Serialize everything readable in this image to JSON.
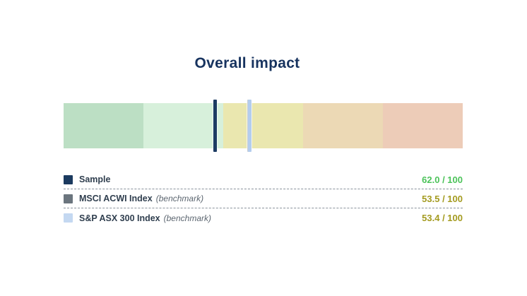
{
  "title": "Overall impact",
  "colors": {
    "title": "#17335f",
    "separator": "#8a929c",
    "sample_value": "#4cc35a",
    "benchmark_value": "#a49b20"
  },
  "chart_data": {
    "type": "bullet-scale",
    "title": "Overall impact",
    "scale": {
      "min": 0,
      "max": 100,
      "orientation": "horizontal",
      "direction": "left=100 (best, green) to right=0 (worst, red)"
    },
    "bands": [
      {
        "range": [
          100,
          80
        ],
        "color": "#bcdfc4"
      },
      {
        "range": [
          80,
          60
        ],
        "color": "#d7f0db"
      },
      {
        "range": [
          60,
          40
        ],
        "color": "#eae7af"
      },
      {
        "range": [
          40,
          20
        ],
        "color": "#ecd9b5"
      },
      {
        "range": [
          20,
          0
        ],
        "color": "#edccb8"
      }
    ],
    "markers": [
      {
        "name": "Sample",
        "value": 62.0,
        "color": "#1d3c63",
        "layer": 3
      },
      {
        "name": "MSCI ACWI Index",
        "value": 53.5,
        "color": "#6b757e",
        "layer": 1
      },
      {
        "name": "S&P ASX 300 Index",
        "value": 53.4,
        "color": "#b4cdee",
        "layer": 2
      }
    ]
  },
  "legend": {
    "rows": [
      {
        "label": "Sample",
        "suffix": "",
        "value_display": "62.0 / 100",
        "score": 62.0,
        "denominator": 100,
        "swatch_color": "#1b3a5f",
        "value_color": "#4cc35a"
      },
      {
        "label": "MSCI ACWI Index",
        "suffix": "(benchmark)",
        "value_display": "53.5 / 100",
        "score": 53.5,
        "denominator": 100,
        "swatch_color": "#6b757e",
        "value_color": "#a49b20"
      },
      {
        "label": "S&P ASX 300 Index",
        "suffix": "(benchmark)",
        "value_display": "53.4 / 100",
        "score": 53.4,
        "denominator": 100,
        "swatch_color": "#c4d8f1",
        "value_color": "#a49b20"
      }
    ]
  }
}
